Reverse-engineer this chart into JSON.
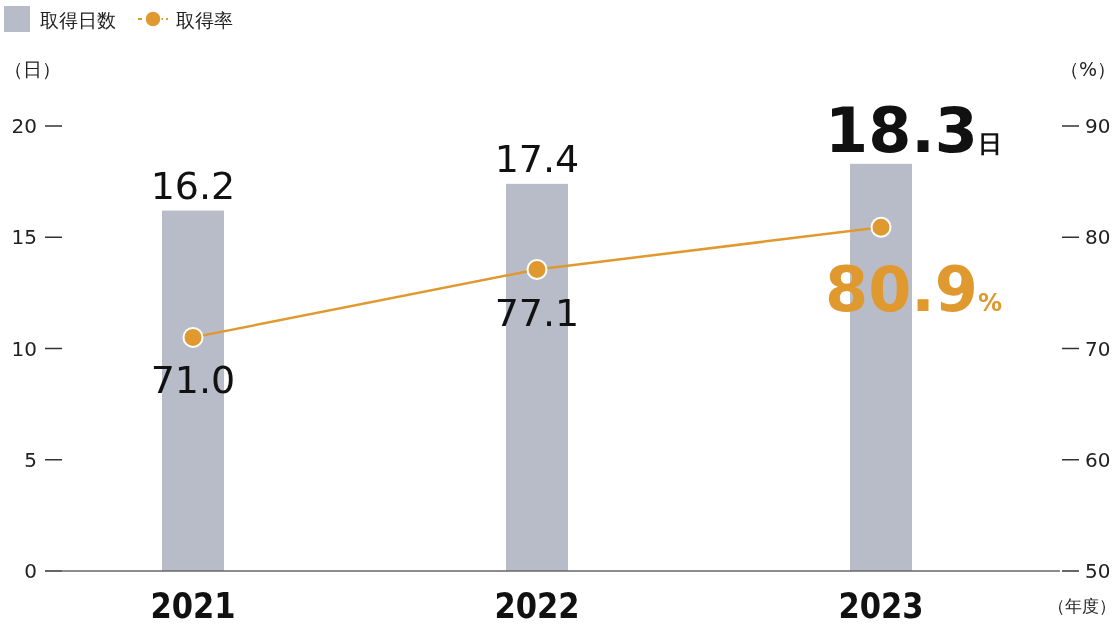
{
  "chart_data": {
    "type": "bar",
    "categories": [
      "2021",
      "2022",
      "2023"
    ],
    "series": [
      {
        "name": "取得日数",
        "color": "#b8bcc8",
        "values": [
          16.2,
          17.4,
          18.3
        ],
        "value_labels": [
          "16.2",
          "17.4",
          "18.3日"
        ]
      },
      {
        "name": "取得率",
        "type": "line",
        "axis": "y2",
        "color": "#e0992f",
        "values": [
          71.0,
          77.1,
          80.9
        ],
        "value_labels": [
          "71.0",
          "77.1",
          "80.9%"
        ]
      }
    ],
    "ylabel": "（日）",
    "y2label": "（%）",
    "xlabel": "（年度）",
    "ylim": [
      0,
      20
    ],
    "yticks": [
      0,
      5,
      10,
      15,
      20
    ],
    "y2lim": [
      50,
      90
    ],
    "y2ticks": [
      50,
      60,
      70,
      80,
      90
    ],
    "legend": "top left",
    "marker": "circle",
    "grid": false
  }
}
